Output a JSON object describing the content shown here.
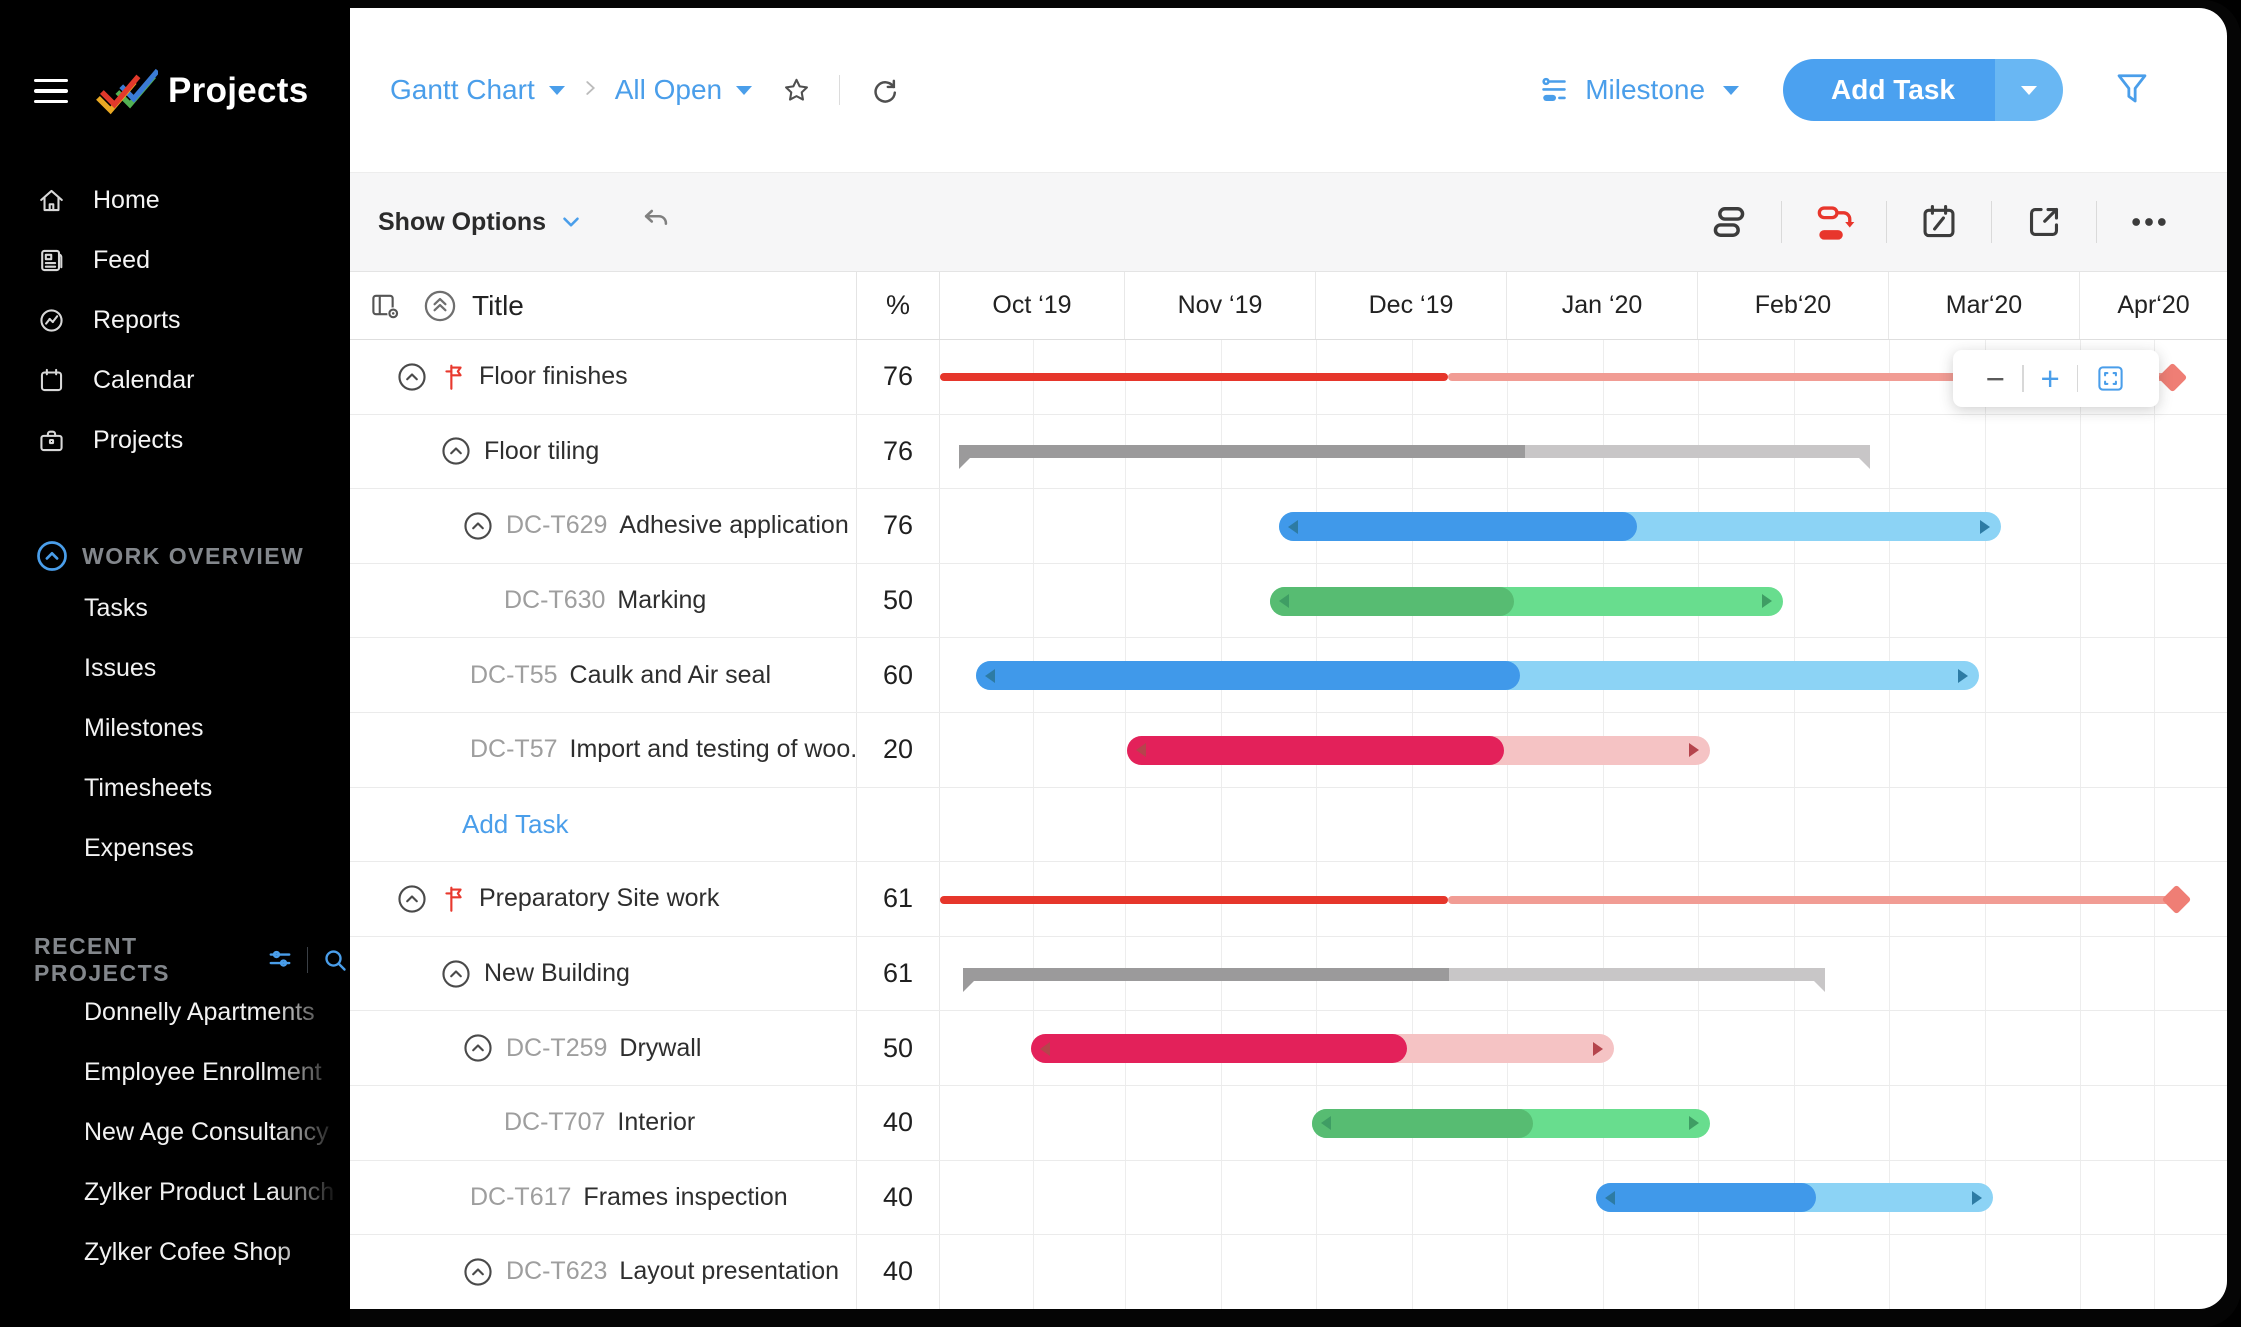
{
  "sidebar": {
    "logo_text": "Projects",
    "nav": [
      {
        "label": "Home",
        "icon": "home-icon"
      },
      {
        "label": "Feed",
        "icon": "feed-icon"
      },
      {
        "label": "Reports",
        "icon": "reports-icon"
      },
      {
        "label": "Calendar",
        "icon": "calendar-icon"
      },
      {
        "label": "Projects",
        "icon": "projects-icon"
      }
    ],
    "work_overview": {
      "title": "WORK OVERVIEW",
      "items": [
        "Tasks",
        "Issues",
        "Milestones",
        "Timesheets",
        "Expenses"
      ]
    },
    "recent_projects": {
      "title": "RECENT PROJECTS",
      "items": [
        "Donnelly Apartments",
        "Employee Enrollment",
        "New Age Consultancy",
        "Zylker Product Launch",
        "Zylker Cofee Shop"
      ]
    }
  },
  "header": {
    "breadcrumb": [
      {
        "label": "Gantt Chart"
      },
      {
        "label": "All Open"
      }
    ],
    "milestone_selector": "Milestone",
    "add_task_label": "Add Task"
  },
  "toolbar": {
    "show_options_label": "Show Options"
  },
  "grid": {
    "title_column": "Title",
    "percent_column": "%",
    "months": [
      "Oct ‘19",
      "Nov ‘19",
      "Dec ‘19",
      "Jan ‘20",
      "Feb‘20",
      "Mar‘20",
      "Apr‘20"
    ],
    "rows": [
      {
        "name": "Floor finishes",
        "percent": "76",
        "indent": "root",
        "chevron": true,
        "flag": true,
        "bar": {
          "type": "milestone-line",
          "start": 0,
          "progress": 0.395,
          "end": 0.957
        }
      },
      {
        "name": "Floor tiling",
        "percent": "76",
        "indent": "child",
        "chevron": true,
        "bar": {
          "type": "summary",
          "start": 0.015,
          "progress": 0.455,
          "end": 0.723
        }
      },
      {
        "id": "DC-T629",
        "name": "Adhesive application",
        "percent": "76",
        "indent": "g1",
        "chevron": true,
        "bar": {
          "type": "task",
          "color": "blue",
          "start": 0.263,
          "progress": 0.542,
          "end": 0.824
        }
      },
      {
        "id": "DC-T630",
        "name": "Marking",
        "percent": "50",
        "indent": "g2",
        "bar": {
          "type": "task",
          "color": "green",
          "start": 0.256,
          "progress": 0.446,
          "end": 0.655
        }
      },
      {
        "id": "DC-T55",
        "name": "Caulk and Air seal",
        "percent": "60",
        "indent": "g3",
        "bar": {
          "type": "task",
          "color": "blue",
          "start": 0.028,
          "progress": 0.451,
          "end": 0.807
        }
      },
      {
        "id": "DC-T57",
        "name": "Import and testing of woo..",
        "percent": "20",
        "indent": "g3",
        "bar": {
          "type": "task",
          "color": "pink",
          "start": 0.145,
          "progress": 0.438,
          "end": 0.598
        }
      },
      {
        "add_task": true,
        "label": "Add Task"
      },
      {
        "name": "Preparatory Site work",
        "percent": "61",
        "indent": "root",
        "chevron": true,
        "flag": true,
        "bar": {
          "type": "milestone-line",
          "start": 0,
          "progress": 0.395,
          "end": 0.96
        }
      },
      {
        "name": "New Building",
        "percent": "61",
        "indent": "child",
        "chevron": true,
        "bar": {
          "type": "summary",
          "start": 0.018,
          "progress": 0.395,
          "end": 0.688
        }
      },
      {
        "id": "DC-T259",
        "name": "Drywall",
        "percent": "50",
        "indent": "g1",
        "chevron": true,
        "bar": {
          "type": "task",
          "color": "pink",
          "start": 0.071,
          "progress": 0.363,
          "end": 0.524
        }
      },
      {
        "id": "DC-T707",
        "name": "Interior",
        "percent": "40",
        "indent": "g2",
        "bar": {
          "type": "task",
          "color": "green",
          "start": 0.289,
          "progress": 0.461,
          "end": 0.598
        }
      },
      {
        "id": "DC-T617",
        "name": "Frames inspection",
        "percent": "40",
        "indent": "g3",
        "bar": {
          "type": "task",
          "color": "blue",
          "start": 0.51,
          "progress": 0.681,
          "end": 0.818
        }
      },
      {
        "id": "DC-T623",
        "name": "Layout presentation",
        "percent": "40",
        "indent": "g1",
        "chevron": true,
        "bar": null
      }
    ]
  },
  "zoom_controls": {
    "zoom_out": "−",
    "zoom_in": "+",
    "fit_icon": "fit-screen-icon"
  },
  "colors": {
    "accent_blue": "#4A9EEA",
    "critical_red": "#E8362C",
    "bar_blue": "#4099EA",
    "bar_blue_light": "#8CD3F5",
    "bar_green": "#57BC72",
    "bar_green_light": "#68DD8E",
    "bar_pink": "#E3215A",
    "bar_pink_light": "#F5C3C4",
    "summary_dark": "#9B9A9B",
    "summary_light": "#C8C6C7",
    "line_red": "#E6362B",
    "line_red_light": "#F19C94",
    "line_diamond": "#EF7E75"
  }
}
